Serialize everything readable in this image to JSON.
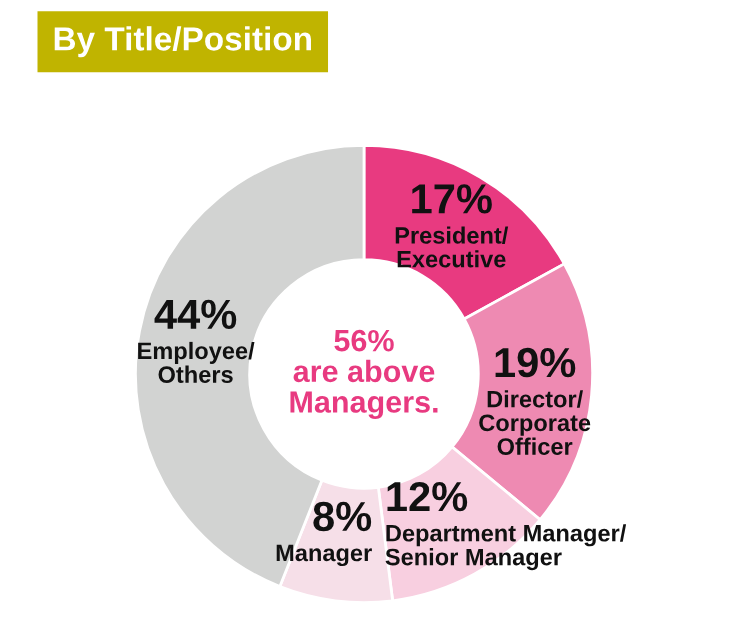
{
  "chart_data": {
    "type": "donut",
    "title": "By Title/Position",
    "categories": [
      "President/\nExecutive",
      "Director/\nCorporate\nOfficer",
      "Department Manager/\nSenior Manager",
      "Manager",
      "Employee/\nOthers"
    ],
    "values": [
      17,
      19,
      12,
      8,
      44
    ],
    "value_labels": [
      "17%",
      "19%",
      "12%",
      "8%",
      "44%"
    ],
    "colors": [
      "#e83a80",
      "#ee8ab2",
      "#f8cfe0",
      "#f6dfe8",
      "#d2d3d2"
    ],
    "annotations": [
      "56%\nare above\nManagers."
    ],
    "legend": false
  }
}
